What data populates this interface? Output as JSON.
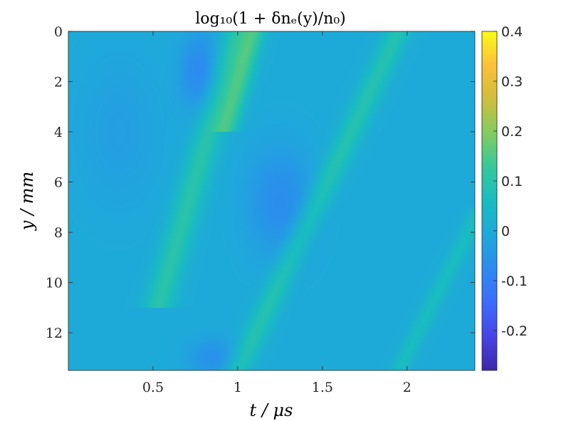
{
  "chart_data": {
    "type": "heatmap",
    "title": "log₁₀(1 + δnₑ(y)/n₀)",
    "xlabel": "t / μs",
    "ylabel": "y / mm",
    "xlim": [
      0,
      2.4
    ],
    "ylim": [
      0,
      13.5
    ],
    "y_reversed": true,
    "x_ticks": [
      "0.5",
      "1",
      "1.5",
      "2"
    ],
    "x_tick_values": [
      0.5,
      1,
      1.5,
      2
    ],
    "y_ticks": [
      "0",
      "2",
      "4",
      "6",
      "8",
      "10",
      "12"
    ],
    "y_tick_values": [
      0,
      2,
      4,
      6,
      8,
      10,
      12
    ],
    "colorbar": {
      "colormap": "parula",
      "range": [
        -0.28,
        0.4
      ],
      "ticks": [
        "0.4",
        "0.3",
        "0.2",
        "0.1",
        "0",
        "-0.1",
        "-0.2"
      ],
      "tick_values": [
        0.4,
        0.3,
        0.2,
        0.1,
        0,
        -0.1,
        -0.2
      ]
    },
    "background_value": 0.0,
    "features": [
      {
        "kind": "ridge",
        "x0": 1.0,
        "y0": 0.0,
        "x1": 0.55,
        "y1": 10.5,
        "width": 0.09,
        "value": 0.1
      },
      {
        "kind": "ridge",
        "x0": 1.1,
        "y0": 0.0,
        "x1": 0.95,
        "y1": 3.5,
        "width": 0.07,
        "value": 0.12
      },
      {
        "kind": "ridge",
        "x0": 1.95,
        "y0": 0.0,
        "x1": 1.0,
        "y1": 13.5,
        "width": 0.08,
        "value": 0.09
      },
      {
        "kind": "ridge",
        "x0": 2.4,
        "y0": 7.5,
        "x1": 1.95,
        "y1": 13.5,
        "width": 0.06,
        "value": 0.06
      },
      {
        "kind": "blob",
        "x": 0.78,
        "y": 1.6,
        "rx": 0.12,
        "ry": 1.6,
        "value": -0.08
      },
      {
        "kind": "blob",
        "x": 1.25,
        "y": 6.8,
        "rx": 0.2,
        "ry": 2.2,
        "value": -0.07
      },
      {
        "kind": "blob",
        "x": 0.85,
        "y": 13.0,
        "rx": 0.15,
        "ry": 0.8,
        "value": -0.06
      },
      {
        "kind": "blob",
        "x": 0.3,
        "y": 4.0,
        "rx": 0.25,
        "ry": 3.0,
        "value": -0.03
      }
    ]
  }
}
